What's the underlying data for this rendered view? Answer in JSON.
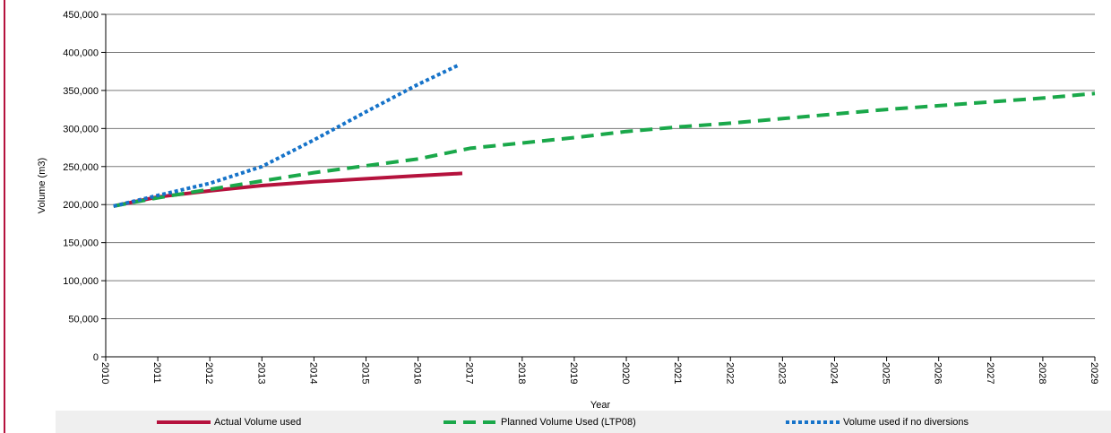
{
  "chart_data": {
    "type": "line",
    "xlabel": "Year",
    "ylabel": "Volume (m3)",
    "xlim": [
      2010,
      2029
    ],
    "ylim": [
      0,
      450000
    ],
    "x_ticks": [
      "2010",
      "2011",
      "2012",
      "2013",
      "2014",
      "2015",
      "2016",
      "2017",
      "2018",
      "2019",
      "2020",
      "2021",
      "2022",
      "2023",
      "2024",
      "2025",
      "2026",
      "2027",
      "2028",
      "2029"
    ],
    "y_ticks": [
      "0",
      "50,000",
      "100,000",
      "150,000",
      "200,000",
      "250,000",
      "300,000",
      "350,000",
      "400,000",
      "450,000"
    ],
    "grid": "horizontal",
    "legend_position": "bottom",
    "series": [
      {
        "name": "Actual Volume used",
        "color": "#b5123d",
        "style": "solid",
        "x": [
          2010.15,
          2011,
          2012,
          2013,
          2014,
          2015,
          2016,
          2016.85
        ],
        "y": [
          198000,
          210000,
          218000,
          225000,
          230000,
          234000,
          238000,
          241000
        ]
      },
      {
        "name": "Planned Volume Used (LTP08)",
        "color": "#1aa84a",
        "style": "dashed",
        "x": [
          2010.15,
          2011,
          2012,
          2013,
          2014,
          2015,
          2016,
          2017,
          2018,
          2019,
          2020,
          2021,
          2022,
          2023,
          2024,
          2025,
          2026,
          2027,
          2028,
          2029
        ],
        "y": [
          198000,
          209000,
          220000,
          231000,
          242000,
          251000,
          260000,
          274000,
          281000,
          288000,
          296000,
          302000,
          307000,
          313000,
          319000,
          325000,
          330000,
          335000,
          340000,
          346000
        ]
      },
      {
        "name": "Volume used if no diversions",
        "color": "#1673c9",
        "style": "dotted",
        "x": [
          2010.15,
          2011,
          2012,
          2013,
          2014,
          2015,
          2016,
          2016.8
        ],
        "y": [
          198000,
          212000,
          228000,
          250000,
          285000,
          322000,
          358000,
          384000
        ]
      }
    ]
  }
}
